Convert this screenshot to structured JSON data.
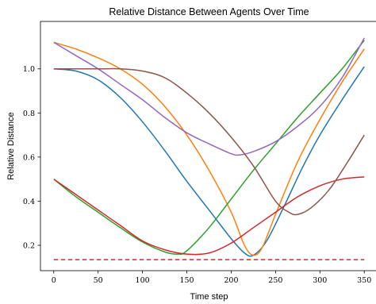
{
  "chart_data": {
    "type": "line",
    "title": "Relative Distance Between Agents Over Time",
    "xlabel": "Time step",
    "ylabel": "Relative Distance",
    "xlim": [
      -15,
      365
    ],
    "ylim": [
      0.085,
      1.215
    ],
    "xticks": [
      0,
      50,
      100,
      150,
      200,
      250,
      300,
      350
    ],
    "yticks": [
      0.2,
      0.4,
      0.6,
      0.8,
      1.0
    ],
    "ytick_labels": [
      "0.2",
      "0.4",
      "0.6",
      "0.8",
      "1.0"
    ],
    "grid": false,
    "legend": "none",
    "series": [
      {
        "color": "#1f77b4",
        "points": [
          [
            0,
            1.0
          ],
          [
            25,
            0.99
          ],
          [
            50,
            0.95
          ],
          [
            75,
            0.87
          ],
          [
            100,
            0.76
          ],
          [
            125,
            0.63
          ],
          [
            150,
            0.49
          ],
          [
            175,
            0.36
          ],
          [
            200,
            0.23
          ],
          [
            215,
            0.165
          ],
          [
            225,
            0.155
          ],
          [
            240,
            0.22
          ],
          [
            260,
            0.38
          ],
          [
            280,
            0.55
          ],
          [
            300,
            0.7
          ],
          [
            325,
            0.86
          ],
          [
            350,
            1.01
          ]
        ]
      },
      {
        "color": "#ff7f0e",
        "points": [
          [
            0,
            1.12
          ],
          [
            25,
            1.09
          ],
          [
            50,
            1.05
          ],
          [
            75,
            1.0
          ],
          [
            100,
            0.93
          ],
          [
            125,
            0.83
          ],
          [
            150,
            0.7
          ],
          [
            175,
            0.54
          ],
          [
            200,
            0.35
          ],
          [
            215,
            0.2
          ],
          [
            225,
            0.155
          ],
          [
            235,
            0.19
          ],
          [
            250,
            0.34
          ],
          [
            275,
            0.58
          ],
          [
            300,
            0.77
          ],
          [
            325,
            0.94
          ],
          [
            350,
            1.09
          ]
        ]
      },
      {
        "color": "#2ca02c",
        "points": [
          [
            0,
            0.5
          ],
          [
            25,
            0.42
          ],
          [
            50,
            0.35
          ],
          [
            75,
            0.28
          ],
          [
            100,
            0.215
          ],
          [
            125,
            0.17
          ],
          [
            140,
            0.16
          ],
          [
            150,
            0.175
          ],
          [
            175,
            0.28
          ],
          [
            200,
            0.41
          ],
          [
            225,
            0.54
          ],
          [
            250,
            0.66
          ],
          [
            275,
            0.78
          ],
          [
            300,
            0.89
          ],
          [
            325,
            1.0
          ],
          [
            350,
            1.13
          ]
        ]
      },
      {
        "color": "#d62728",
        "points": [
          [
            0,
            0.5
          ],
          [
            25,
            0.43
          ],
          [
            50,
            0.36
          ],
          [
            75,
            0.29
          ],
          [
            100,
            0.22
          ],
          [
            125,
            0.18
          ],
          [
            150,
            0.16
          ],
          [
            175,
            0.165
          ],
          [
            200,
            0.21
          ],
          [
            225,
            0.28
          ],
          [
            250,
            0.35
          ],
          [
            275,
            0.42
          ],
          [
            300,
            0.47
          ],
          [
            325,
            0.5
          ],
          [
            350,
            0.51
          ]
        ]
      },
      {
        "color": "#9467bd",
        "points": [
          [
            0,
            1.12
          ],
          [
            25,
            1.06
          ],
          [
            50,
            1.0
          ],
          [
            75,
            0.93
          ],
          [
            100,
            0.86
          ],
          [
            125,
            0.78
          ],
          [
            150,
            0.71
          ],
          [
            175,
            0.66
          ],
          [
            200,
            0.615
          ],
          [
            210,
            0.61
          ],
          [
            225,
            0.625
          ],
          [
            250,
            0.67
          ],
          [
            275,
            0.74
          ],
          [
            300,
            0.83
          ],
          [
            325,
            0.96
          ],
          [
            350,
            1.14
          ]
        ]
      },
      {
        "color": "#8c564b",
        "points": [
          [
            0,
            1.0
          ],
          [
            50,
            1.0
          ],
          [
            75,
            1.0
          ],
          [
            100,
            0.99
          ],
          [
            125,
            0.96
          ],
          [
            150,
            0.89
          ],
          [
            175,
            0.8
          ],
          [
            200,
            0.69
          ],
          [
            225,
            0.56
          ],
          [
            250,
            0.4
          ],
          [
            265,
            0.35
          ],
          [
            275,
            0.34
          ],
          [
            290,
            0.37
          ],
          [
            310,
            0.45
          ],
          [
            330,
            0.57
          ],
          [
            350,
            0.7
          ]
        ]
      }
    ],
    "reference_line": {
      "y": 0.135,
      "color": "#d62728",
      "style": "dashed"
    }
  }
}
